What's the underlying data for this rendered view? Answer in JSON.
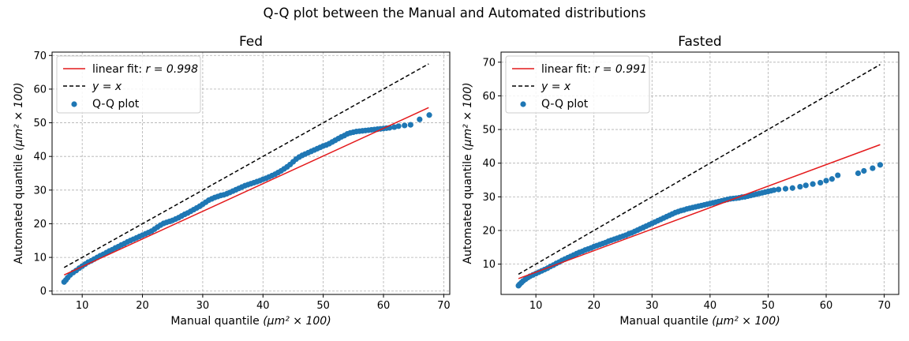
{
  "suptitle": "Q-Q plot between the Manual and Automated distributions",
  "colors": {
    "fit": "#e41a1c",
    "identity": "#000000",
    "points": "#1f77b4"
  },
  "chart_data": [
    {
      "type": "scatter",
      "title": "Fed",
      "xlabel": "Manual quantile",
      "xlabel_math": "(μm² × 100)",
      "ylabel": "Automated quantile",
      "ylabel_math": "(μm² × 100)",
      "xlim": [
        5,
        71
      ],
      "ylim": [
        -1,
        71
      ],
      "xticks": [
        10,
        20,
        30,
        40,
        50,
        60,
        70
      ],
      "yticks": [
        0,
        10,
        20,
        30,
        40,
        50,
        60,
        70
      ],
      "grid": true,
      "legend_position": "top-left",
      "legend": [
        {
          "label": "linear fit: ",
          "math": "r = 0.998",
          "kind": "line"
        },
        {
          "label": "",
          "math": "y = x",
          "kind": "dashed"
        },
        {
          "label": "Q-Q plot",
          "math": "",
          "kind": "marker"
        }
      ],
      "fit_line": {
        "x": [
          7,
          67.5
        ],
        "y": [
          4.8,
          54.5
        ]
      },
      "identity_line": {
        "x": [
          7,
          67.5
        ],
        "y": [
          7,
          67.5
        ]
      },
      "series": [
        {
          "name": "Q-Q plot",
          "x": [
            7.0,
            7.3,
            7.6,
            8.0,
            8.5,
            9.0,
            9.5,
            10.0,
            10.5,
            11.0,
            11.5,
            12.0,
            12.5,
            13.0,
            13.5,
            14.0,
            14.5,
            15.0,
            15.5,
            16.0,
            16.5,
            17.0,
            17.5,
            18.0,
            18.5,
            19.0,
            19.5,
            20.0,
            20.5,
            21.0,
            21.5,
            22.0,
            22.5,
            23.0,
            23.5,
            24.0,
            24.5,
            25.0,
            25.5,
            26.0,
            26.5,
            27.0,
            27.5,
            28.0,
            28.5,
            29.0,
            29.5,
            30.0,
            30.5,
            31.0,
            31.5,
            32.0,
            32.5,
            33.0,
            33.5,
            34.0,
            34.5,
            35.0,
            35.5,
            36.0,
            36.5,
            37.0,
            37.5,
            38.0,
            38.5,
            39.0,
            39.5,
            40.0,
            40.5,
            41.0,
            41.5,
            42.0,
            42.5,
            43.0,
            43.5,
            44.0,
            44.5,
            45.0,
            45.5,
            46.0,
            46.5,
            47.0,
            47.5,
            48.0,
            48.5,
            49.0,
            49.5,
            50.0,
            50.5,
            51.0,
            51.5,
            52.0,
            52.5,
            53.0,
            53.5,
            54.0,
            54.5,
            55.0,
            55.5,
            56.0,
            56.5,
            57.0,
            57.5,
            58.0,
            58.5,
            59.0,
            59.5,
            60.0,
            60.5,
            61.0,
            61.8,
            62.5,
            63.5,
            64.5,
            66.0,
            67.6
          ],
          "y": [
            2.7,
            3.3,
            4.0,
            4.8,
            5.5,
            6.1,
            6.8,
            7.4,
            8.0,
            8.6,
            9.0,
            9.5,
            10.0,
            10.5,
            10.9,
            11.4,
            11.9,
            12.3,
            12.8,
            13.2,
            13.7,
            14.1,
            14.6,
            15.0,
            15.4,
            15.8,
            16.2,
            16.6,
            17.0,
            17.4,
            17.8,
            18.4,
            19.0,
            19.6,
            20.1,
            20.4,
            20.7,
            21.0,
            21.4,
            21.8,
            22.3,
            22.8,
            23.2,
            23.7,
            24.2,
            24.7,
            25.2,
            25.8,
            26.4,
            27.0,
            27.4,
            27.8,
            28.1,
            28.4,
            28.6,
            28.9,
            29.3,
            29.7,
            30.1,
            30.5,
            30.9,
            31.3,
            31.6,
            31.9,
            32.2,
            32.5,
            32.8,
            33.2,
            33.5,
            33.9,
            34.3,
            34.7,
            35.2,
            35.7,
            36.3,
            36.9,
            37.6,
            38.4,
            39.2,
            39.8,
            40.3,
            40.7,
            41.1,
            41.5,
            41.9,
            42.3,
            42.7,
            43.1,
            43.4,
            43.8,
            44.3,
            44.8,
            45.3,
            45.8,
            46.2,
            46.7,
            47.0,
            47.2,
            47.4,
            47.5,
            47.6,
            47.7,
            47.8,
            47.9,
            48.0,
            48.1,
            48.2,
            48.3,
            48.4,
            48.5,
            48.7,
            49.0,
            49.2,
            49.4,
            51.0,
            52.3
          ]
        }
      ]
    },
    {
      "type": "scatter",
      "title": "Fasted",
      "xlabel": "Manual quantile",
      "xlabel_math": "(μm² × 100)",
      "ylabel": "Automated quantile",
      "ylabel_math": "(μm² × 100)",
      "xlim": [
        4,
        72.5
      ],
      "ylim": [
        1,
        73
      ],
      "xticks": [
        10,
        20,
        30,
        40,
        50,
        60,
        70
      ],
      "yticks": [
        10,
        20,
        30,
        40,
        50,
        60,
        70
      ],
      "grid": true,
      "legend_position": "top-left",
      "legend": [
        {
          "label": "linear fit: ",
          "math": "r = 0.991",
          "kind": "line"
        },
        {
          "label": "",
          "math": "y = x",
          "kind": "dashed"
        },
        {
          "label": "Q-Q plot",
          "math": "",
          "kind": "marker"
        }
      ],
      "fit_line": {
        "x": [
          7,
          69.3
        ],
        "y": [
          5.7,
          45.5
        ]
      },
      "identity_line": {
        "x": [
          7,
          69.3
        ],
        "y": [
          7,
          69.3
        ]
      },
      "series": [
        {
          "name": "Q-Q plot",
          "x": [
            7.0,
            7.2,
            7.5,
            7.8,
            8.2,
            8.6,
            9.0,
            9.5,
            10.0,
            10.5,
            11.0,
            11.5,
            12.0,
            12.5,
            13.0,
            13.5,
            14.0,
            14.5,
            15.0,
            15.5,
            16.0,
            16.5,
            17.0,
            17.5,
            18.0,
            18.5,
            19.0,
            19.5,
            20.0,
            20.5,
            21.0,
            21.5,
            22.0,
            22.5,
            23.0,
            23.5,
            24.0,
            24.5,
            25.0,
            25.5,
            26.0,
            26.5,
            27.0,
            27.5,
            28.0,
            28.5,
            29.0,
            29.5,
            30.0,
            30.5,
            31.0,
            31.5,
            32.0,
            32.5,
            33.0,
            33.5,
            34.0,
            34.5,
            35.0,
            35.5,
            36.0,
            36.5,
            37.0,
            37.5,
            38.0,
            38.5,
            39.0,
            39.5,
            40.0,
            40.5,
            41.0,
            41.5,
            42.0,
            42.5,
            43.0,
            43.5,
            44.0,
            44.5,
            45.0,
            45.5,
            46.0,
            46.5,
            47.0,
            47.5,
            48.0,
            48.5,
            49.0,
            49.5,
            50.0,
            50.5,
            51.0,
            51.8,
            53.0,
            54.2,
            55.5,
            56.5,
            57.7,
            59.0,
            60.0,
            61.0,
            62.0,
            65.5,
            66.5,
            68.0,
            69.3
          ],
          "y": [
            3.6,
            4.0,
            4.5,
            5.0,
            5.5,
            6.0,
            6.4,
            6.8,
            7.2,
            7.6,
            8.0,
            8.4,
            8.8,
            9.3,
            9.7,
            10.2,
            10.6,
            11.1,
            11.5,
            11.9,
            12.3,
            12.7,
            13.1,
            13.5,
            13.8,
            14.2,
            14.5,
            14.8,
            15.2,
            15.5,
            15.8,
            16.1,
            16.4,
            16.8,
            17.1,
            17.4,
            17.7,
            18.0,
            18.3,
            18.6,
            19.0,
            19.3,
            19.7,
            20.1,
            20.5,
            20.9,
            21.3,
            21.7,
            22.1,
            22.5,
            22.9,
            23.3,
            23.7,
            24.1,
            24.5,
            24.9,
            25.3,
            25.6,
            25.9,
            26.1,
            26.4,
            26.6,
            26.8,
            27.0,
            27.2,
            27.4,
            27.6,
            27.8,
            28.0,
            28.2,
            28.4,
            28.6,
            28.8,
            29.0,
            29.2,
            29.4,
            29.5,
            29.6,
            29.7,
            29.9,
            30.0,
            30.2,
            30.4,
            30.6,
            30.8,
            31.0,
            31.2,
            31.4,
            31.6,
            31.8,
            32.0,
            32.2,
            32.4,
            32.6,
            33.0,
            33.4,
            33.8,
            34.2,
            34.8,
            35.3,
            36.4,
            37.0,
            37.7,
            38.5,
            39.5
          ]
        }
      ]
    }
  ]
}
